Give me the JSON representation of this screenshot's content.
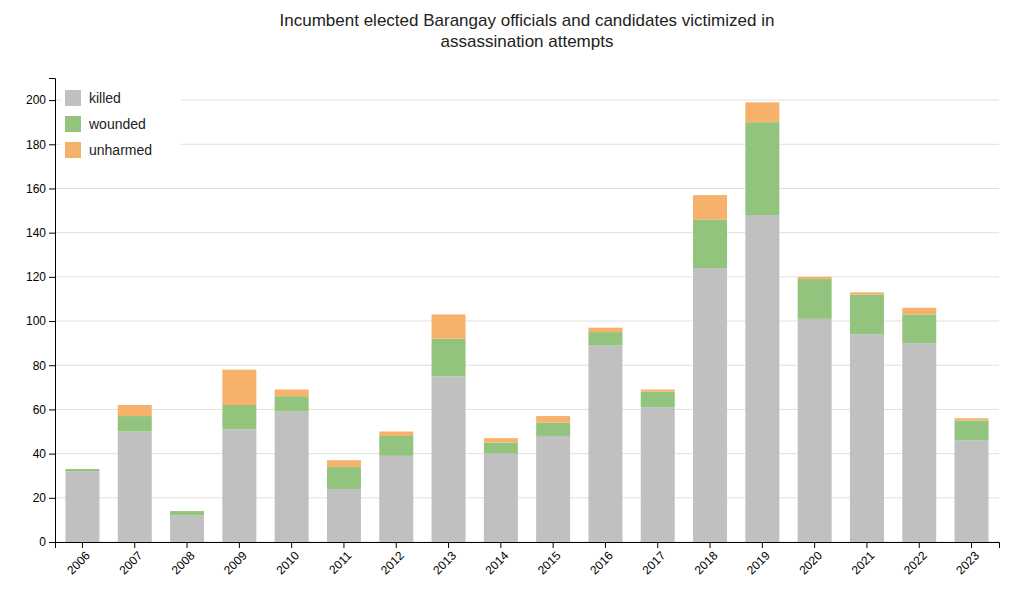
{
  "chart_data": {
    "type": "bar",
    "stacked": true,
    "title": "Incumbent elected Barangay officials and candidates victimized in\nassassination attempts",
    "categories": [
      "2006",
      "2007",
      "2008",
      "2009",
      "2010",
      "2011",
      "2012",
      "2013",
      "2014",
      "2015",
      "2016",
      "2017",
      "2018",
      "2019",
      "2020",
      "2021",
      "2022",
      "2023"
    ],
    "series": [
      {
        "name": "killed",
        "color": "#c0c0c0",
        "values": [
          32,
          50,
          12,
          51,
          59,
          24,
          39,
          75,
          40,
          48,
          89,
          61,
          124,
          148,
          101,
          94,
          90,
          46
        ]
      },
      {
        "name": "wounded",
        "color": "#93c47d",
        "values": [
          1,
          7,
          2,
          11,
          7,
          10,
          9,
          17,
          5,
          6,
          6,
          7,
          22,
          42,
          18,
          18,
          13,
          9
        ]
      },
      {
        "name": "unharmed",
        "color": "#f6b26b",
        "values": [
          0,
          5,
          0,
          16,
          3,
          3,
          2,
          11,
          2,
          3,
          2,
          1,
          11,
          9,
          1,
          1,
          3,
          1
        ]
      }
    ],
    "ylim": [
      0,
      210
    ],
    "yticks": [
      0,
      20,
      40,
      60,
      80,
      100,
      120,
      140,
      160,
      180,
      200
    ],
    "grid": true,
    "legend": "upper left"
  }
}
